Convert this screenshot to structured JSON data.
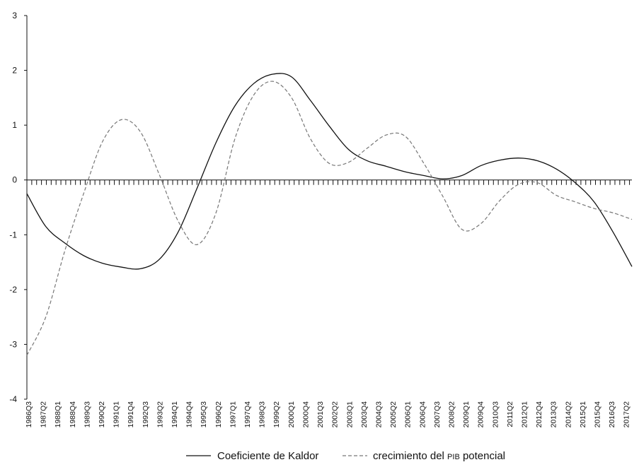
{
  "chart_data": {
    "type": "line",
    "y_ticks": [
      "3",
      "2",
      "1",
      "0",
      "-1",
      "-2",
      "-3",
      "-4"
    ],
    "ylim": [
      -4,
      3
    ],
    "x_tick_labels": [
      "1986Q3",
      "1987Q2",
      "1988Q1",
      "1988Q4",
      "1989Q3",
      "1990Q2",
      "1991Q1",
      "1991Q4",
      "1992Q3",
      "1993Q2",
      "1994Q1",
      "1994Q4",
      "1995Q3",
      "1996Q2",
      "1997Q1",
      "1997Q4",
      "1998Q3",
      "1999Q2",
      "2000Q1",
      "2000Q4",
      "2001Q3",
      "2002Q2",
      "2003Q1",
      "2003Q4",
      "2004Q3",
      "2005Q2",
      "2006Q1",
      "2006Q4",
      "2007Q3",
      "2008Q2",
      "2009Q1",
      "2009Q4",
      "2010Q3",
      "2011Q2",
      "2012Q1",
      "2012Q4",
      "2013Q3",
      "2014Q2",
      "2015Q1",
      "2015Q4",
      "2016Q3",
      "2017Q2"
    ],
    "zero_line": true,
    "legend_position": "bottom",
    "series": [
      {
        "name": "Coeficiente de Kaldor",
        "style": "solid",
        "color": "#111111",
        "values": [
          -0.25,
          -0.85,
          -1.15,
          -1.38,
          -1.52,
          -1.59,
          -1.62,
          -1.45,
          -0.95,
          -0.15,
          0.68,
          1.35,
          1.76,
          1.93,
          1.88,
          1.45,
          0.98,
          0.56,
          0.35,
          0.25,
          0.15,
          0.08,
          0.02,
          0.08,
          0.26,
          0.36,
          0.4,
          0.35,
          0.2,
          -0.05,
          -0.4,
          -0.95,
          -1.58
        ]
      },
      {
        "name": "crecimiento del PIB potencial",
        "name_plain": "crecimiento del ",
        "name_smallcaps": "PIB",
        "name_suffix": " potencial",
        "style": "dashed",
        "color": "#777777",
        "values": [
          -3.2,
          -2.5,
          -1.3,
          -0.25,
          0.7,
          1.1,
          0.88,
          0.1,
          -0.75,
          -1.18,
          -0.6,
          0.75,
          1.55,
          1.8,
          1.5,
          0.75,
          0.3,
          0.32,
          0.58,
          0.82,
          0.8,
          0.3,
          -0.3,
          -0.9,
          -0.8,
          -0.38,
          -0.08,
          -0.05,
          -0.28,
          -0.4,
          -0.52,
          -0.6,
          -0.72
        ]
      }
    ]
  }
}
